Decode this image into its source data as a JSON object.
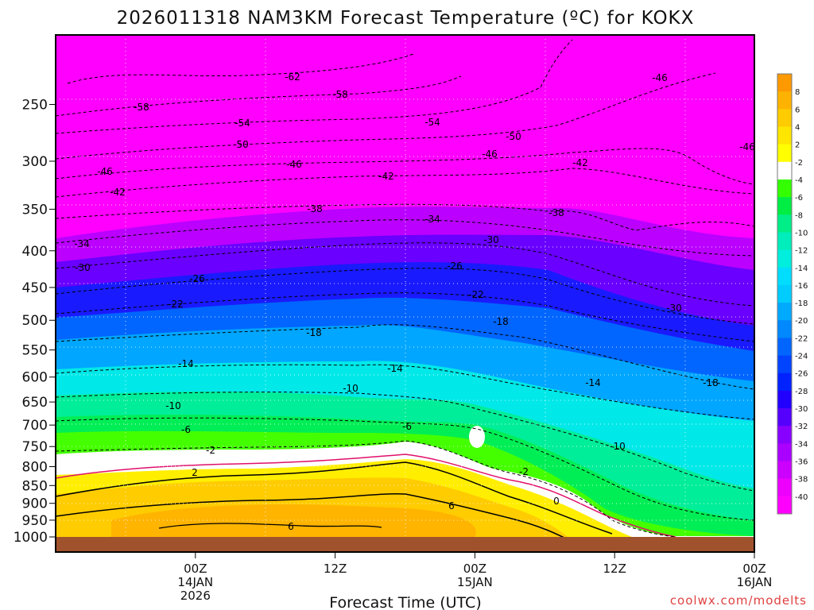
{
  "chart_data": {
    "type": "heatmap",
    "title": "2026011318 NAM3KM Forecast Temperature (ºC) for KOKX",
    "xlabel": "Forecast Time (UTC)",
    "ylabel": "",
    "watermark": "coolwx.com/modelts",
    "y_axis": {
      "scale": "log-pressure",
      "range": [
        1000,
        200
      ],
      "ticks": [
        "250",
        "300",
        "350",
        "400",
        "450",
        "500",
        "550",
        "600",
        "650",
        "700",
        "750",
        "800",
        "850",
        "900",
        "950",
        "1000"
      ]
    },
    "x_axis": {
      "range_hours": [
        -6,
        54
      ],
      "ticks": [
        {
          "hour": 6,
          "line1": "00Z",
          "line2": "14JAN",
          "line3": "2026"
        },
        {
          "hour": 18,
          "line1": "12Z",
          "line2": "",
          "line3": ""
        },
        {
          "hour": 30,
          "line1": "00Z",
          "line2": "15JAN",
          "line3": ""
        },
        {
          "hour": 42,
          "line1": "12Z",
          "line2": "",
          "line3": ""
        },
        {
          "hour": 54,
          "line1": "00Z",
          "line2": "16JAN",
          "line3": ""
        }
      ]
    },
    "colorbar": {
      "labels": [
        "8",
        "6",
        "4",
        "2",
        "-2",
        "-4",
        "-6",
        "-8",
        "-10",
        "-12",
        "-14",
        "-16",
        "-18",
        "-20",
        "-22",
        "-24",
        "-26",
        "-28",
        "-30",
        "-32",
        "-34",
        "-36",
        "-38",
        "-40"
      ],
      "colors": [
        "#ff9900",
        "#ffb300",
        "#ffcc00",
        "#ffe600",
        "#ffff00",
        "#ffffff",
        "#33ff00",
        "#00ee44",
        "#00ee88",
        "#00eebb",
        "#00eedd",
        "#00ddff",
        "#00ccff",
        "#00aaff",
        "#0088ff",
        "#0066ff",
        "#0044ff",
        "#0022ff",
        "#2200ff",
        "#5500ff",
        "#8800ff",
        "#aa00ff",
        "#cc00ff",
        "#ee00ff",
        "#ff00ff"
      ]
    },
    "contour_labels": [
      "-62",
      "-58",
      "-58",
      "-54",
      "-54",
      "-50",
      "-50",
      "-46",
      "-46",
      "-46",
      "-46",
      "-46",
      "-42",
      "-42",
      "-42",
      "-38",
      "-38",
      "-34",
      "-34",
      "-30",
      "-30",
      "-30",
      "-26",
      "-26",
      "-22",
      "-22",
      "-18",
      "-18",
      "-18",
      "-14",
      "-14",
      "-14",
      "-10",
      "-10",
      "-10",
      "-6",
      "-6",
      "-2",
      "2",
      "-2",
      "6",
      "6",
      "0"
    ],
    "series": []
  },
  "colors": {
    "sky": "#ff00ff",
    "ground": "#a0522d",
    "freezing_line": "#e0106a",
    "contour": "#000000"
  }
}
